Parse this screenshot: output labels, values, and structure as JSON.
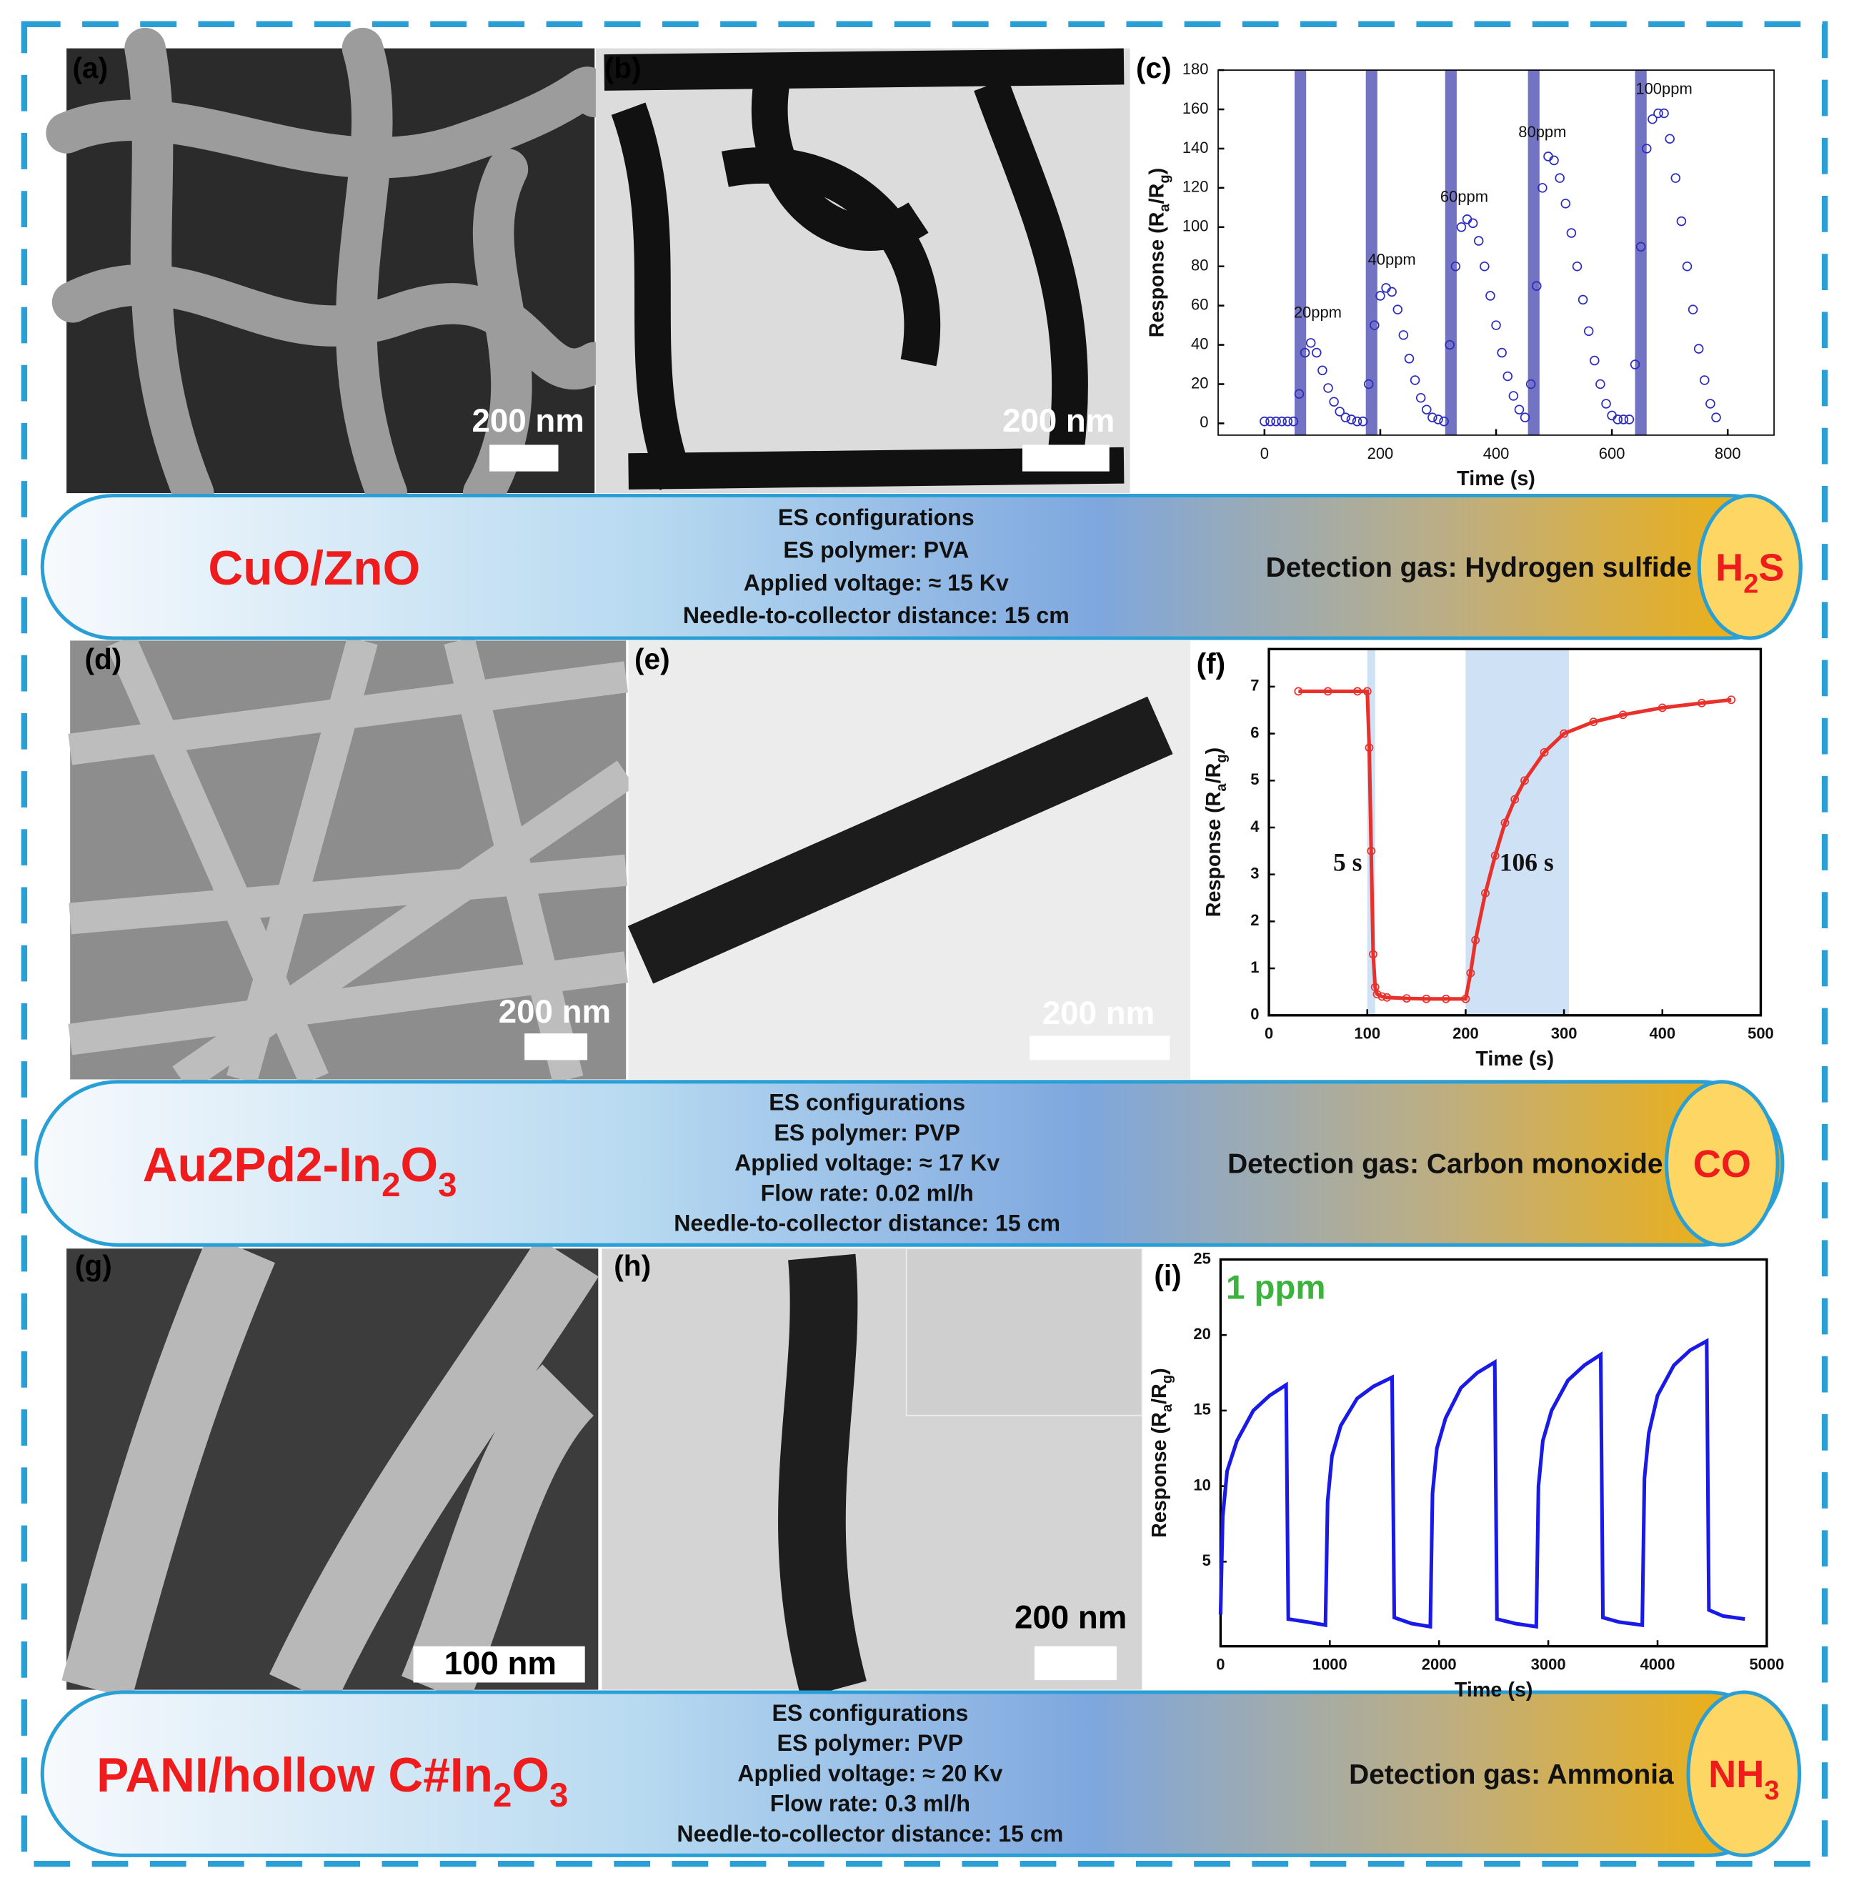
{
  "panels": {
    "labels": [
      "(a)",
      "(b)",
      "(c)",
      "(d)",
      "(e)",
      "(f)",
      "(g)",
      "(h)",
      "(i)"
    ],
    "scale_bars": [
      "200 nm",
      "200 nm",
      "200 nm",
      "200 nm",
      "100 nm",
      "200 nm"
    ]
  },
  "chart_data": [
    {
      "type": "scatter",
      "xlabel": "Time (s)",
      "ylabel": [
        "Response (R",
        "a",
        "/R",
        "g",
        ")"
      ],
      "xlim": [
        -80,
        880
      ],
      "ylim": [
        -6,
        180
      ],
      "xticks": [
        0,
        200,
        400,
        600,
        800
      ],
      "yticks": [
        0,
        20,
        40,
        60,
        80,
        100,
        120,
        140,
        160,
        180
      ],
      "bands": [
        [
          52,
          72
        ],
        [
          175,
          195
        ],
        [
          312,
          332
        ],
        [
          455,
          475
        ],
        [
          640,
          660
        ]
      ],
      "band_color": "#5b5bb8",
      "x": [
        0,
        10,
        20,
        30,
        40,
        50,
        60,
        70,
        80,
        90,
        100,
        110,
        120,
        130,
        140,
        150,
        160,
        170,
        180,
        190,
        200,
        210,
        220,
        230,
        240,
        250,
        260,
        270,
        280,
        290,
        300,
        310,
        320,
        330,
        340,
        350,
        360,
        370,
        380,
        390,
        400,
        410,
        420,
        430,
        440,
        450,
        460,
        470,
        480,
        490,
        500,
        510,
        520,
        530,
        540,
        550,
        560,
        570,
        580,
        590,
        600,
        610,
        620,
        630,
        640,
        650,
        660,
        670,
        680,
        690,
        700,
        710,
        720,
        730,
        740,
        750,
        760,
        770,
        780
      ],
      "series": [
        {
          "color": "#2b2bc0",
          "values": [
            1,
            1,
            1,
            1,
            1,
            1,
            15,
            36,
            41,
            36,
            27,
            18,
            11,
            6,
            3,
            2,
            1,
            1,
            20,
            50,
            65,
            69,
            67,
            58,
            45,
            33,
            22,
            13,
            7,
            3,
            2,
            1,
            40,
            80,
            100,
            104,
            102,
            93,
            80,
            65,
            50,
            36,
            24,
            14,
            7,
            3,
            20,
            70,
            120,
            136,
            134,
            125,
            112,
            97,
            80,
            63,
            47,
            32,
            20,
            10,
            4,
            2,
            2,
            2,
            30,
            90,
            140,
            155,
            158,
            158,
            145,
            125,
            103,
            80,
            58,
            38,
            22,
            10,
            3
          ]
        }
      ],
      "annotations": [
        "20ppm",
        "40ppm",
        "60ppm",
        "80ppm",
        "100ppm"
      ]
    },
    {
      "type": "line",
      "markers": true,
      "xlabel": "Time (s)",
      "ylabel": [
        "Response (R",
        "a",
        "/R",
        "g",
        ")"
      ],
      "xlim": [
        0,
        500
      ],
      "ylim": [
        0,
        7.8
      ],
      "xticks": [
        0,
        100,
        200,
        300,
        400,
        500
      ],
      "yticks": [
        0,
        1,
        2,
        3,
        4,
        5,
        6,
        7
      ],
      "bands": [
        [
          100,
          108
        ],
        [
          200,
          305
        ]
      ],
      "band_color": "#cfe1f5",
      "x": [
        30,
        60,
        90,
        100,
        102,
        104,
        106,
        108,
        110,
        115,
        120,
        140,
        160,
        180,
        200,
        205,
        210,
        220,
        230,
        240,
        250,
        260,
        280,
        300,
        330,
        360,
        400,
        440,
        470
      ],
      "series": [
        {
          "color": "#e8312b",
          "values": [
            6.9,
            6.9,
            6.9,
            6.9,
            5.7,
            3.5,
            1.3,
            0.6,
            0.45,
            0.4,
            0.38,
            0.36,
            0.35,
            0.35,
            0.35,
            0.9,
            1.6,
            2.6,
            3.4,
            4.1,
            4.6,
            5.0,
            5.6,
            6.0,
            6.25,
            6.4,
            6.55,
            6.65,
            6.72
          ]
        }
      ],
      "annotations": [
        "5 s",
        "106 s"
      ]
    },
    {
      "type": "line",
      "xlabel": "Time (s)",
      "ylabel": [
        "Response (R",
        "a",
        "/R",
        "g",
        ")"
      ],
      "xlim": [
        0,
        5000
      ],
      "ylim": [
        -0.6,
        25
      ],
      "xticks": [
        0,
        1000,
        2000,
        3000,
        4000,
        5000
      ],
      "yticks": [
        5,
        10,
        15,
        20,
        25
      ],
      "x": [
        0,
        20,
        60,
        150,
        300,
        450,
        600,
        620,
        800,
        960,
        980,
        1020,
        1100,
        1250,
        1400,
        1570,
        1590,
        1750,
        1920,
        1940,
        1980,
        2060,
        2200,
        2350,
        2510,
        2530,
        2700,
        2890,
        2910,
        2950,
        3030,
        3180,
        3330,
        3480,
        3500,
        3650,
        3860,
        3880,
        3920,
        4000,
        4150,
        4300,
        4450,
        4470,
        4600,
        4800
      ],
      "series": [
        {
          "color": "#1a1ae6",
          "values": [
            1.5,
            8,
            11,
            13,
            15,
            16,
            16.7,
            1.2,
            1,
            0.8,
            9,
            12,
            14,
            15.8,
            16.6,
            17.2,
            1.3,
            0.9,
            0.7,
            9.5,
            12.5,
            14.5,
            16.5,
            17.5,
            18.2,
            1.2,
            0.9,
            0.7,
            10,
            13,
            15,
            17,
            18,
            18.7,
            1.3,
            1,
            0.8,
            10.5,
            13.5,
            16,
            18,
            19,
            19.6,
            1.8,
            1.4,
            1.2
          ]
        }
      ],
      "annotations": [
        "1 ppm"
      ],
      "annotation_color": "#3cb33c"
    }
  ],
  "banners": [
    {
      "material": [
        "CuO/ZnO"
      ],
      "config": [
        "ES configurations",
        "ES polymer: PVA",
        "Applied voltage: ≈ 15 Kv",
        "Needle-to-collector distance: 15 cm"
      ],
      "detection": "Detection gas: Hydrogen sulfide",
      "gas": [
        "H",
        "2",
        "S"
      ]
    },
    {
      "material": [
        "Au2Pd2-In",
        "2",
        "O",
        "3"
      ],
      "config": [
        "ES configurations",
        "ES polymer: PVP",
        "Applied voltage: ≈ 17 Kv",
        "Flow rate: 0.02 ml/h",
        "Needle-to-collector distance: 15 cm"
      ],
      "detection": "Detection gas: Carbon monoxide",
      "gas": [
        "CO"
      ]
    },
    {
      "material": [
        "PANI/hollow C#In",
        "2",
        "O",
        "3"
      ],
      "config": [
        "ES configurations",
        "ES polymer: PVP",
        "Applied voltage: ≈ 20 Kv",
        "Flow rate: 0.3 ml/h",
        "Needle-to-collector distance: 15 cm"
      ],
      "detection": "Detection gas: Ammonia",
      "gas": [
        "NH",
        "3"
      ]
    }
  ]
}
